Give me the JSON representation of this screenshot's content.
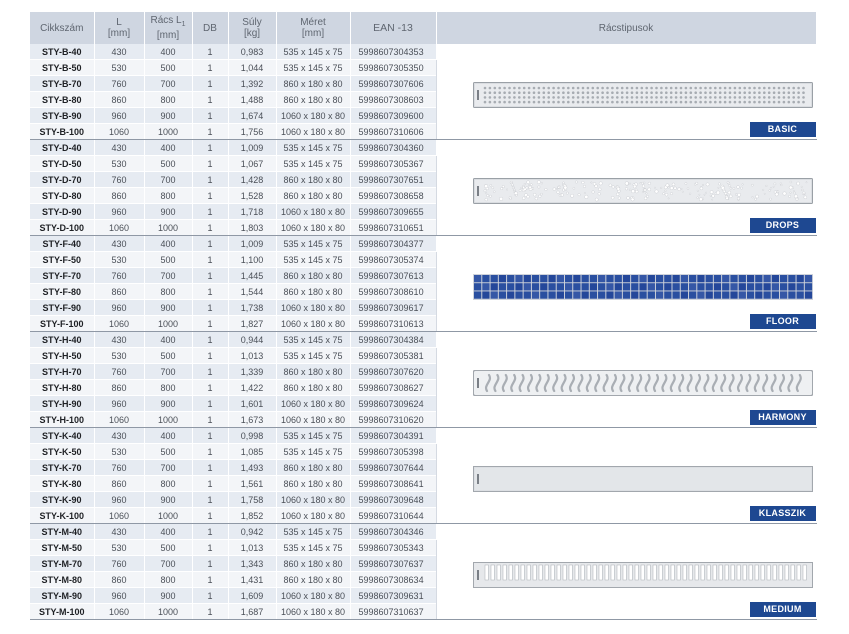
{
  "headers": {
    "code": "Cikkszám",
    "l": "L",
    "l_unit": "[mm]",
    "racs": "Rács L",
    "racs_sub": "1",
    "racs_unit": "[mm]",
    "db": "DB",
    "suly": "Súly",
    "suly_unit": "[kg]",
    "meret": "Méret",
    "meret_unit": "[mm]",
    "ean": "EAN -13",
    "racstipusok": "Rácstipusok"
  },
  "groups": [
    {
      "label": "BASIC",
      "pattern": "basic",
      "rows": [
        [
          "STY-B-40",
          "430",
          "400",
          "1",
          "0,983",
          "535 x 145 x 75",
          "5998607304353"
        ],
        [
          "STY-B-50",
          "530",
          "500",
          "1",
          "1,044",
          "535 x 145 x 75",
          "5998607305350"
        ],
        [
          "STY-B-70",
          "760",
          "700",
          "1",
          "1,392",
          "860 x 180 x 80",
          "5998607307606"
        ],
        [
          "STY-B-80",
          "860",
          "800",
          "1",
          "1,488",
          "860 x 180 x 80",
          "5998607308603"
        ],
        [
          "STY-B-90",
          "960",
          "900",
          "1",
          "1,674",
          "1060 x 180 x 80",
          "5998607309600"
        ],
        [
          "STY-B-100",
          "1060",
          "1000",
          "1",
          "1,756",
          "1060 x 180 x 80",
          "5998607310606"
        ]
      ]
    },
    {
      "label": "DROPS",
      "pattern": "drops",
      "rows": [
        [
          "STY-D-40",
          "430",
          "400",
          "1",
          "1,009",
          "535 x 145 x 75",
          "5998607304360"
        ],
        [
          "STY-D-50",
          "530",
          "500",
          "1",
          "1,067",
          "535 x 145 x 75",
          "5998607305367"
        ],
        [
          "STY-D-70",
          "760",
          "700",
          "1",
          "1,428",
          "860 x 180 x 80",
          "5998607307651"
        ],
        [
          "STY-D-80",
          "860",
          "800",
          "1",
          "1,528",
          "860 x 180 x 80",
          "5998607308658"
        ],
        [
          "STY-D-90",
          "960",
          "900",
          "1",
          "1,718",
          "1060 x 180 x 80",
          "5998607309655"
        ],
        [
          "STY-D-100",
          "1060",
          "1000",
          "1",
          "1,803",
          "1060 x 180 x 80",
          "5998607310651"
        ]
      ]
    },
    {
      "label": "FLOOR",
      "pattern": "floor",
      "rows": [
        [
          "STY-F-40",
          "430",
          "400",
          "1",
          "1,009",
          "535 x 145 x 75",
          "5998607304377"
        ],
        [
          "STY-F-50",
          "530",
          "500",
          "1",
          "1,100",
          "535 x 145 x 75",
          "5998607305374"
        ],
        [
          "STY-F-70",
          "760",
          "700",
          "1",
          "1,445",
          "860 x 180 x 80",
          "5998607307613"
        ],
        [
          "STY-F-80",
          "860",
          "800",
          "1",
          "1,544",
          "860 x 180 x 80",
          "5998607308610"
        ],
        [
          "STY-F-90",
          "960",
          "900",
          "1",
          "1,738",
          "1060 x 180 x 80",
          "5998607309617"
        ],
        [
          "STY-F-100",
          "1060",
          "1000",
          "1",
          "1,827",
          "1060 x 180 x 80",
          "5998607310613"
        ]
      ]
    },
    {
      "label": "HARMONY",
      "pattern": "harmony",
      "rows": [
        [
          "STY-H-40",
          "430",
          "400",
          "1",
          "0,944",
          "535 x 145 x 75",
          "5998607304384"
        ],
        [
          "STY-H-50",
          "530",
          "500",
          "1",
          "1,013",
          "535 x 145 x 75",
          "5998607305381"
        ],
        [
          "STY-H-70",
          "760",
          "700",
          "1",
          "1,339",
          "860 x 180 x 80",
          "5998607307620"
        ],
        [
          "STY-H-80",
          "860",
          "800",
          "1",
          "1,422",
          "860 x 180 x 80",
          "5998607308627"
        ],
        [
          "STY-H-90",
          "960",
          "900",
          "1",
          "1,601",
          "1060 x 180 x 80",
          "5998607309624"
        ],
        [
          "STY-H-100",
          "1060",
          "1000",
          "1",
          "1,673",
          "1060 x 180 x 80",
          "5998607310620"
        ]
      ]
    },
    {
      "label": "KLASSZIK",
      "pattern": "klasszik",
      "rows": [
        [
          "STY-K-40",
          "430",
          "400",
          "1",
          "0,998",
          "535 x 145 x 75",
          "5998607304391"
        ],
        [
          "STY-K-50",
          "530",
          "500",
          "1",
          "1,085",
          "535 x 145 x 75",
          "5998607305398"
        ],
        [
          "STY-K-70",
          "760",
          "700",
          "1",
          "1,493",
          "860 x 180 x 80",
          "5998607307644"
        ],
        [
          "STY-K-80",
          "860",
          "800",
          "1",
          "1,561",
          "860 x 180 x 80",
          "5998607308641"
        ],
        [
          "STY-K-90",
          "960",
          "900",
          "1",
          "1,758",
          "1060 x 180 x 80",
          "5998607309648"
        ],
        [
          "STY-K-100",
          "1060",
          "1000",
          "1",
          "1,852",
          "1060 x 180 x 80",
          "5998607310644"
        ]
      ]
    },
    {
      "label": "MEDIUM",
      "pattern": "medium",
      "rows": [
        [
          "STY-M-40",
          "430",
          "400",
          "1",
          "0,942",
          "535 x 145 x 75",
          "5998607304346"
        ],
        [
          "STY-M-50",
          "530",
          "500",
          "1",
          "1,013",
          "535 x 145 x 75",
          "5998607305343"
        ],
        [
          "STY-M-70",
          "760",
          "700",
          "1",
          "1,343",
          "860 x 180 x 80",
          "5998607307637"
        ],
        [
          "STY-M-80",
          "860",
          "800",
          "1",
          "1,431",
          "860 x 180 x 80",
          "5998607308634"
        ],
        [
          "STY-M-90",
          "960",
          "900",
          "1",
          "1,609",
          "1060 x 180 x 80",
          "5998607309631"
        ],
        [
          "STY-M-100",
          "1060",
          "1000",
          "1",
          "1,687",
          "1060 x 180 x 80",
          "5998607310637"
        ]
      ]
    }
  ],
  "colors": {
    "header_bg": "#cfd6e1",
    "label_bg": "#1e4891",
    "floor_tile": "#2a4fa0",
    "steel": "#d9dcdf"
  }
}
